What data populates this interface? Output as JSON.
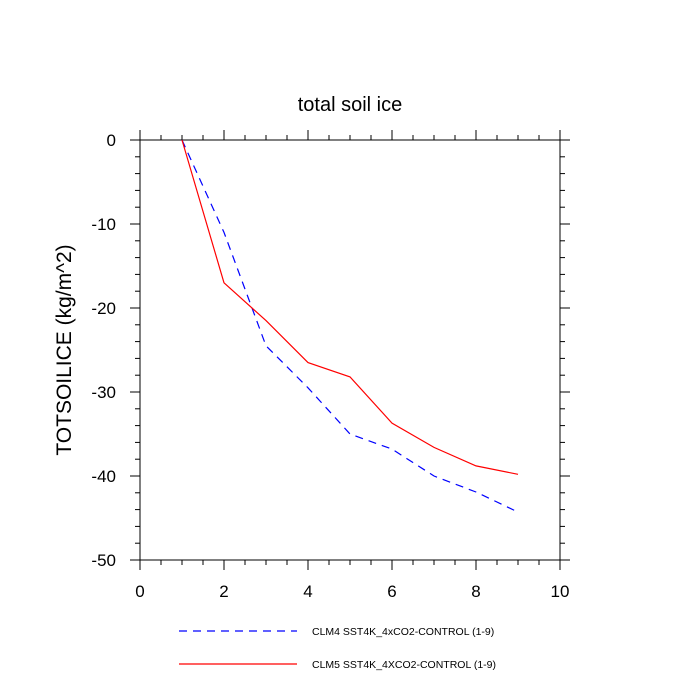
{
  "chart_data": {
    "type": "line",
    "title": "total soil ice",
    "xlabel": "",
    "ylabel": "TOTSOILICE  (kg/m^2)",
    "xlim": [
      0,
      10
    ],
    "ylim": [
      -50,
      0
    ],
    "xticks": [
      0,
      2,
      4,
      6,
      8,
      10
    ],
    "yticks": [
      0,
      -10,
      -20,
      -30,
      -40,
      -50
    ],
    "grid": false,
    "legend_position": "bottom",
    "x": [
      1,
      2,
      3,
      4,
      5,
      6,
      7,
      8,
      9
    ],
    "series": [
      {
        "name": "CLM4 SST4K_4xCO2-CONTROL (1-9)",
        "values": [
          0,
          -11,
          -24.5,
          -29.5,
          -35,
          -36.8,
          -40,
          -41.9,
          -44.3
        ],
        "color": "#0000ff",
        "dash": "dashed"
      },
      {
        "name": "CLM5 SST4K_4XCO2-CONTROL (1-9)",
        "values": [
          0,
          -17,
          -21.5,
          -26.5,
          -28.2,
          -33.7,
          -36.6,
          -38.8,
          -39.8
        ],
        "color": "#ff0000",
        "dash": "solid"
      }
    ]
  }
}
